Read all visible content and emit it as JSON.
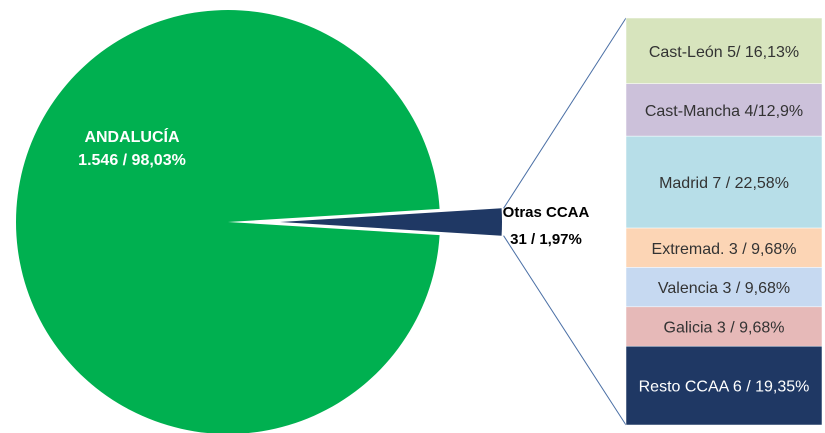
{
  "chart_data": {
    "type": "bar-of-pie",
    "title": "",
    "pie": {
      "slices": [
        {
          "name": "ANDALUCÍA",
          "label_line1": "ANDALUCÍA",
          "label_line2": "1.546 / 98,03%",
          "value": 1546,
          "percent": 98.03,
          "color": "#00b050",
          "label_color": "#ffffff"
        },
        {
          "name": "Otras CCAA",
          "label_line1": "Otras CCAA",
          "label_line2": "31 / 1,97%",
          "value": 31,
          "percent": 1.97,
          "color": "#1f3864",
          "label_color": "#000000"
        }
      ]
    },
    "bar": {
      "segments": [
        {
          "name": "Cast-León",
          "label": "Cast-León 5/ 16,13%",
          "value": 5,
          "percent": 16.13,
          "color": "#d7e4bd"
        },
        {
          "name": "Cast-Mancha",
          "label": "Cast-Mancha  4/12,9%",
          "value": 4,
          "percent": 12.9,
          "color": "#ccc1da"
        },
        {
          "name": "Madrid",
          "label": "Madrid 7 / 22,58%",
          "value": 7,
          "percent": 22.58,
          "color": "#b7dee8"
        },
        {
          "name": "Extremad.",
          "label": "Extremad. 3 / 9,68%",
          "value": 3,
          "percent": 9.68,
          "color": "#fcd5b5"
        },
        {
          "name": "Valencia",
          "label": "Valencia 3 / 9,68%",
          "value": 3,
          "percent": 9.68,
          "color": "#c6d9f1"
        },
        {
          "name": "Galicia",
          "label": "Galicia  3 / 9,68%",
          "value": 3,
          "percent": 9.68,
          "color": "#e6b9b8"
        },
        {
          "name": "Resto CCAA",
          "label": "Resto CCAA 6 / 19,35%",
          "value": 6,
          "percent": 19.35,
          "color": "#1f3864",
          "label_color": "#ffffff"
        }
      ]
    },
    "connector_color": "#4a6fa5"
  }
}
